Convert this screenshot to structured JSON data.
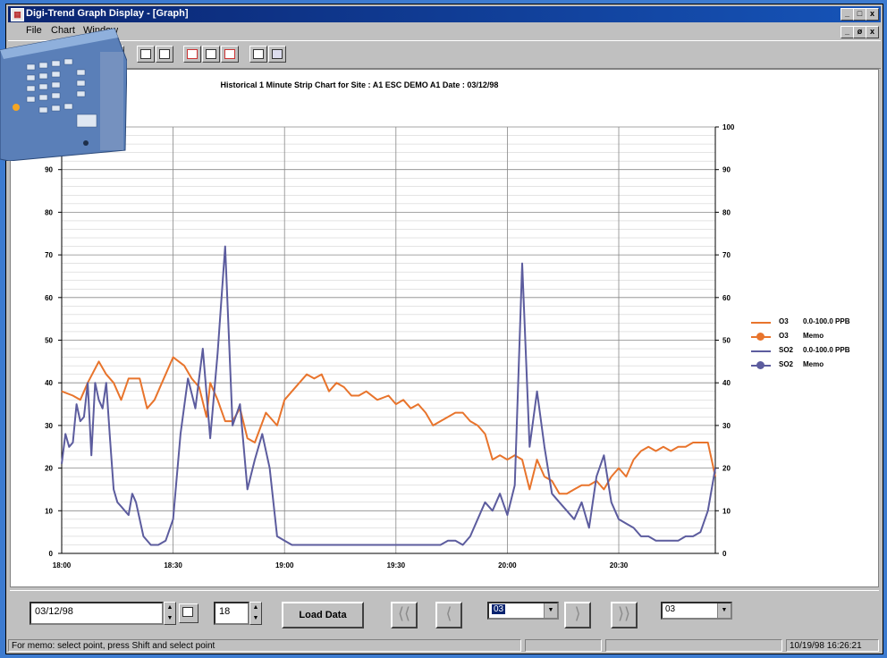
{
  "window": {
    "title": "Digi-Trend Graph Display - [Graph]",
    "controls": [
      "_",
      "□",
      "x"
    ],
    "child_controls": [
      "_",
      "ø",
      "x"
    ]
  },
  "menu": [
    "File",
    "Chart",
    "Window"
  ],
  "toolbar": {
    "icons": [
      "save-icon",
      "print-icon",
      "calendar-icon",
      "export-icon",
      "chart-icon",
      "blank-chart-icon",
      "area-chart-icon",
      "table-icon",
      "graph-icon"
    ]
  },
  "chart": {
    "title": "Historical 1 Minute Strip Chart for Site : A1  ESC DEMO A1  Date : 03/12/98",
    "legend": [
      {
        "name": "O3",
        "desc": "0.0-100.0 PPB",
        "style": "line",
        "color": "#e8742c"
      },
      {
        "name": "O3",
        "desc": "Memo",
        "style": "dot",
        "color": "#e8742c"
      },
      {
        "name": "SO2",
        "desc": "0.0-100.0 PPB",
        "style": "line",
        "color": "#5c5c9e"
      },
      {
        "name": "SO2",
        "desc": "Memo",
        "style": "dot",
        "color": "#5c5c9e"
      }
    ]
  },
  "chart_data": {
    "type": "line",
    "title": "Historical 1 Minute Strip Chart for Site : A1  ESC DEMO A1  Date : 03/12/98",
    "x_ticks": [
      "18:00",
      "18:30",
      "19:00",
      "19:30",
      "20:00",
      "20:30"
    ],
    "y_ticks": [
      "0",
      "10",
      "20",
      "30",
      "40",
      "50",
      "60",
      "70",
      "80",
      "90",
      "100"
    ],
    "ylim": [
      0,
      100
    ],
    "xlim_minutes": [
      0,
      176
    ],
    "grid": true,
    "series": [
      {
        "name": "O3  0.0-100.0 PPB",
        "color": "#e8742c",
        "x": [
          0,
          3,
          5,
          7,
          10,
          12,
          14,
          16,
          18,
          19,
          21,
          23,
          25,
          27,
          30,
          33,
          35,
          37,
          39,
          40,
          42,
          44,
          46,
          48,
          50,
          52,
          55,
          58,
          60,
          62,
          64,
          66,
          68,
          70,
          72,
          74,
          76,
          78,
          80,
          82,
          85,
          88,
          90,
          92,
          94,
          96,
          98,
          100,
          102,
          104,
          106,
          108,
          110,
          112,
          114,
          116,
          118,
          120,
          122,
          124,
          126,
          128,
          130,
          132,
          134,
          136,
          138,
          140,
          142,
          144,
          146,
          148,
          150,
          152,
          154,
          156,
          158,
          160,
          162,
          164,
          166,
          168,
          170,
          172,
          174,
          176
        ],
        "y": [
          38,
          37,
          36,
          40,
          45,
          42,
          40,
          36,
          41,
          41,
          41,
          34,
          36,
          40,
          46,
          44,
          41,
          39,
          32,
          40,
          36,
          31,
          31,
          34,
          27,
          26,
          33,
          30,
          36,
          38,
          40,
          42,
          41,
          42,
          38,
          40,
          39,
          37,
          37,
          38,
          36,
          37,
          35,
          36,
          34,
          35,
          33,
          30,
          31,
          32,
          33,
          33,
          31,
          30,
          28,
          22,
          23,
          22,
          23,
          22,
          15,
          22,
          18,
          17,
          14,
          14,
          15,
          16,
          16,
          17,
          15,
          18,
          20,
          18,
          22,
          24,
          25,
          24,
          25,
          24,
          25,
          25,
          26,
          26,
          26,
          18
        ]
      },
      {
        "name": "SO2  0.0-100.0 PPB",
        "color": "#5c5c9e",
        "x": [
          0,
          1,
          2,
          3,
          4,
          5,
          6,
          7,
          8,
          9,
          10,
          11,
          12,
          13,
          14,
          15,
          16,
          17,
          18,
          19,
          20,
          22,
          24,
          26,
          28,
          30,
          32,
          34,
          36,
          38,
          40,
          42,
          44,
          46,
          48,
          50,
          52,
          54,
          56,
          58,
          60,
          62,
          64,
          66,
          68,
          70,
          72,
          74,
          76,
          78,
          80,
          82,
          84,
          86,
          88,
          90,
          92,
          94,
          96,
          98,
          100,
          102,
          104,
          106,
          108,
          110,
          112,
          114,
          116,
          118,
          120,
          122,
          124,
          126,
          128,
          130,
          132,
          134,
          136,
          138,
          140,
          142,
          144,
          146,
          148,
          150,
          152,
          154,
          156,
          158,
          160,
          162,
          164,
          166,
          168,
          170,
          172,
          174,
          176
        ],
        "y": [
          21,
          28,
          25,
          26,
          35,
          31,
          32,
          40,
          23,
          40,
          36,
          34,
          40,
          27,
          15,
          12,
          11,
          10,
          9,
          14,
          12,
          4,
          2,
          2,
          3,
          8,
          28,
          41,
          34,
          48,
          27,
          47,
          72,
          30,
          35,
          15,
          22,
          28,
          20,
          4,
          3,
          2,
          2,
          2,
          2,
          2,
          2,
          2,
          2,
          2,
          2,
          2,
          2,
          2,
          2,
          2,
          2,
          2,
          2,
          2,
          2,
          2,
          3,
          3,
          2,
          4,
          8,
          12,
          10,
          14,
          9,
          16,
          68,
          25,
          38,
          25,
          14,
          12,
          10,
          8,
          12,
          6,
          18,
          23,
          12,
          8,
          7,
          6,
          4,
          4,
          3,
          3,
          3,
          3,
          4,
          4,
          5,
          10,
          20
        ]
      }
    ]
  },
  "controls": {
    "date_value": "03/12/98",
    "hour_value": "18",
    "load_button": "Load Data",
    "nav_buttons": [
      "⟨⟨",
      "⟨",
      "⟩",
      "⟩⟩"
    ],
    "combo1_value": "03",
    "combo2_value": "03"
  },
  "status": {
    "message": "For memo: select point, press Shift and select point",
    "timestamp": "10/19/98  16:26:21"
  }
}
